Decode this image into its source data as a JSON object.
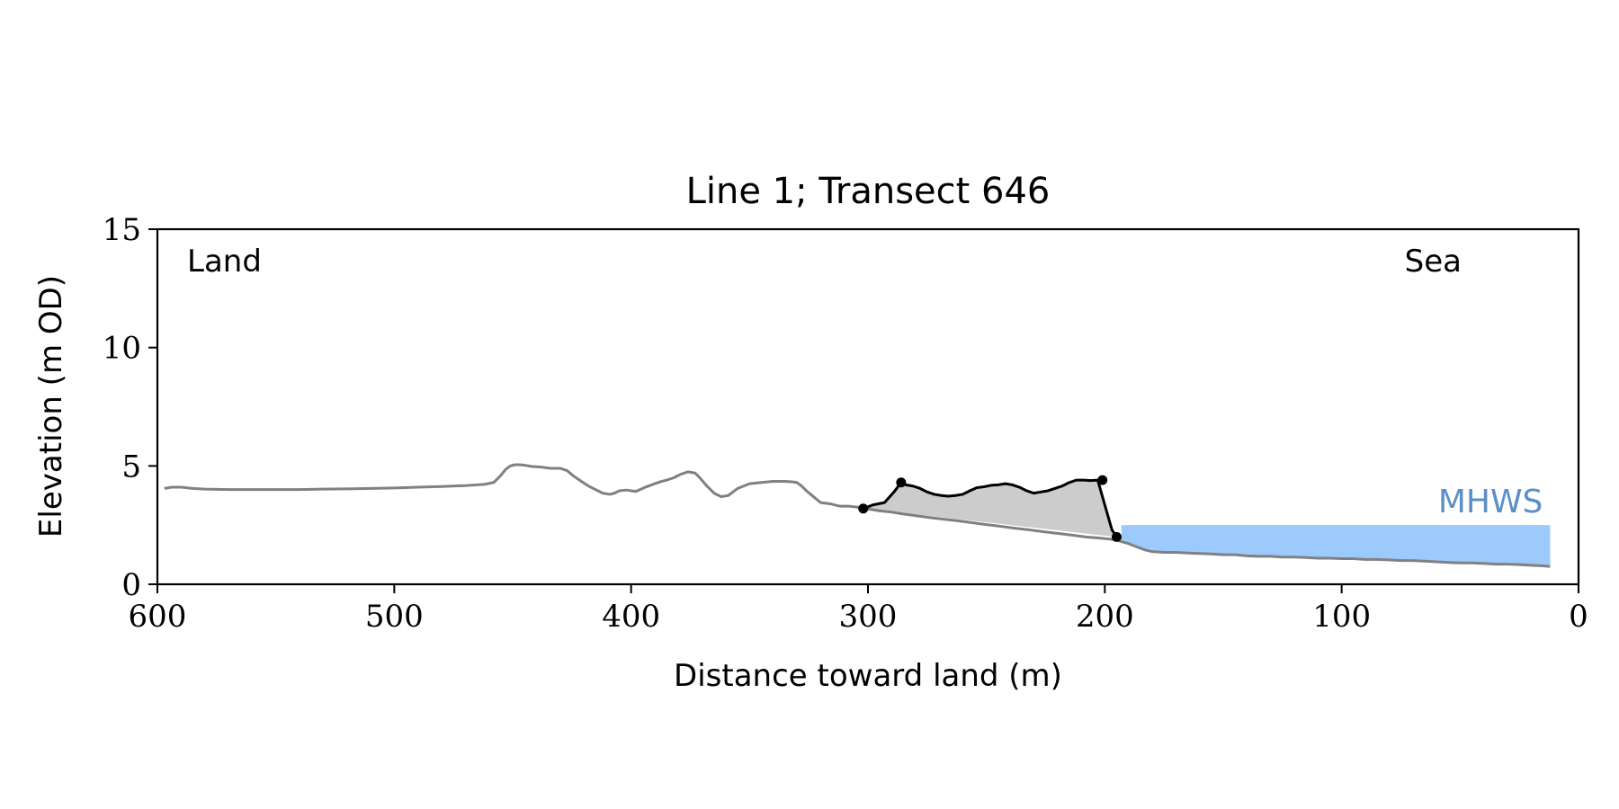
{
  "chart_data": {
    "type": "line",
    "title": "Line 1; Transect 646",
    "xlabel": "Distance toward land (m)",
    "ylabel": "Elevation (m OD)",
    "xlim": [
      600,
      0
    ],
    "ylim": [
      0,
      15
    ],
    "x_reversed": true,
    "xticks": [
      600,
      500,
      400,
      300,
      200,
      100,
      0
    ],
    "yticks": [
      0,
      5,
      10,
      15
    ],
    "grid": false,
    "colors": {
      "profile": "#808080",
      "dune": "#000000",
      "dune_fill": "#cccccc",
      "mhws_fill": "#9ccafc",
      "mhws_label": "#5b8fc7"
    },
    "annotations": {
      "left": "Land",
      "right": "Sea",
      "mhws_label": "MHWS"
    },
    "mhws": {
      "elevation": 2.5,
      "x_start": 193,
      "x_end": 12
    },
    "series": [
      {
        "role": "profile",
        "x": [
          597,
          594,
          590,
          585,
          580,
          570,
          560,
          550,
          540,
          530,
          520,
          510,
          500,
          490,
          480,
          470,
          462,
          458,
          455,
          453,
          451,
          449,
          447,
          445,
          442,
          438,
          434,
          430,
          427,
          424,
          421,
          418,
          415,
          412,
          409,
          407,
          405,
          402,
          398,
          394,
          390,
          387,
          385,
          382,
          379,
          376,
          373,
          371,
          368,
          365,
          362,
          359,
          355,
          350,
          345,
          340,
          335,
          332,
          330,
          328,
          326,
          323,
          320,
          316,
          312,
          308,
          304,
          301,
          298,
          295,
          290,
          286,
          280,
          274,
          268,
          262,
          256,
          250,
          244,
          238,
          232,
          226,
          220,
          214,
          208,
          202,
          199,
          197,
          195,
          193,
          190,
          187,
          183,
          180,
          175,
          170,
          165,
          160,
          155,
          150,
          145,
          140,
          135,
          130,
          125,
          120,
          115,
          110,
          105,
          100,
          95,
          90,
          85,
          80,
          75,
          70,
          65,
          60,
          55,
          50,
          45,
          40,
          35,
          30,
          25,
          20,
          15,
          12
        ],
        "y": [
          4.05,
          4.1,
          4.1,
          4.05,
          4.02,
          4.0,
          4.0,
          4.0,
          4.0,
          4.02,
          4.03,
          4.05,
          4.07,
          4.1,
          4.13,
          4.17,
          4.22,
          4.3,
          4.6,
          4.85,
          5.0,
          5.05,
          5.05,
          5.03,
          4.98,
          4.95,
          4.9,
          4.9,
          4.8,
          4.55,
          4.35,
          4.15,
          4.0,
          3.85,
          3.8,
          3.85,
          3.95,
          3.98,
          3.92,
          4.1,
          4.25,
          4.35,
          4.4,
          4.5,
          4.65,
          4.75,
          4.7,
          4.5,
          4.15,
          3.85,
          3.7,
          3.75,
          4.05,
          4.25,
          4.3,
          4.35,
          4.35,
          4.33,
          4.3,
          4.15,
          3.95,
          3.7,
          3.45,
          3.4,
          3.3,
          3.3,
          3.25,
          3.2,
          3.15,
          3.1,
          3.05,
          2.98,
          2.9,
          2.82,
          2.75,
          2.68,
          2.6,
          2.52,
          2.45,
          2.37,
          2.3,
          2.22,
          2.15,
          2.08,
          2.0,
          1.95,
          1.92,
          1.9,
          1.87,
          1.8,
          1.72,
          1.6,
          1.45,
          1.38,
          1.35,
          1.35,
          1.32,
          1.3,
          1.28,
          1.25,
          1.25,
          1.2,
          1.18,
          1.18,
          1.15,
          1.15,
          1.13,
          1.1,
          1.1,
          1.08,
          1.08,
          1.05,
          1.05,
          1.03,
          1.0,
          1.0,
          0.98,
          0.95,
          0.92,
          0.9,
          0.9,
          0.88,
          0.85,
          0.85,
          0.83,
          0.8,
          0.78,
          0.75
        ]
      },
      {
        "role": "dune",
        "x": [
          302,
          298,
          293,
          289,
          286,
          284,
          281,
          278,
          275,
          272,
          269,
          266,
          263,
          260,
          257,
          254,
          251,
          248,
          245,
          242,
          239,
          236,
          233,
          230,
          227,
          224,
          221,
          218,
          215,
          212,
          209,
          206,
          203,
          201,
          199,
          197,
          195
        ],
        "y": [
          3.2,
          3.35,
          3.45,
          3.9,
          4.3,
          4.2,
          4.15,
          4.05,
          3.9,
          3.8,
          3.75,
          3.72,
          3.75,
          3.8,
          3.95,
          4.08,
          4.12,
          4.18,
          4.2,
          4.25,
          4.2,
          4.1,
          3.95,
          3.85,
          3.9,
          3.95,
          4.05,
          4.15,
          4.3,
          4.4,
          4.4,
          4.38,
          4.4,
          3.7,
          3.0,
          2.3,
          2.0
        ]
      }
    ],
    "markers": [
      {
        "x": 302,
        "y": 3.2
      },
      {
        "x": 286,
        "y": 4.3
      },
      {
        "x": 201,
        "y": 4.4
      },
      {
        "x": 195,
        "y": 2.0
      }
    ]
  }
}
